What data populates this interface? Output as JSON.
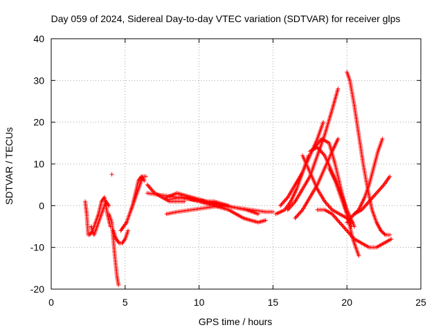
{
  "chart_data": {
    "type": "scatter",
    "title": "Day 059 of 2024, Sidereal Day-to-day VTEC variation (SDTVAR) for receiver glps",
    "xlabel": "GPS time / hours",
    "ylabel": "SDTVAR / TECUs",
    "xlim": [
      0,
      25
    ],
    "ylim": [
      -20,
      40
    ],
    "xticks": [
      0,
      5,
      10,
      15,
      20,
      25
    ],
    "yticks": [
      -20,
      -10,
      0,
      10,
      20,
      30,
      40
    ],
    "grid": true,
    "marker": "+",
    "color": "#ff0000",
    "tracks": [
      {
        "name": "t1",
        "x": [
          2.3,
          2.4,
          2.5
        ],
        "y": [
          1,
          -2,
          -7
        ]
      },
      {
        "name": "t2",
        "x": [
          2.6,
          2.8,
          3.0,
          3.2,
          3.4,
          3.6,
          3.8,
          4.0
        ],
        "y": [
          -7,
          -6,
          -4,
          -2,
          1,
          2,
          -2,
          -5
        ]
      },
      {
        "name": "t3",
        "x": [
          2.7,
          2.9,
          3.1,
          3.3,
          3.5,
          3.7,
          3.9
        ],
        "y": [
          -5,
          -7,
          -5,
          -3,
          -1,
          1,
          0
        ]
      },
      {
        "name": "t4",
        "x": [
          3.9,
          4.1,
          4.3,
          4.45,
          4.55
        ],
        "y": [
          -2,
          -4,
          -12,
          -17,
          -19
        ]
      },
      {
        "name": "t5",
        "x": [
          4.2,
          4.4,
          4.6,
          4.8,
          5.0,
          5.2
        ],
        "y": [
          -6,
          -8,
          -9,
          -9,
          -8,
          -6
        ]
      },
      {
        "name": "t6",
        "x": [
          4.7,
          4.9,
          5.1,
          5.3,
          5.5,
          5.7,
          5.9,
          6.1,
          6.3
        ],
        "y": [
          -6,
          -5,
          -4,
          -2,
          0,
          3,
          6,
          7,
          6
        ]
      },
      {
        "name": "t7",
        "x": [
          5.4,
          5.6,
          5.8,
          6.0,
          6.2,
          6.4
        ],
        "y": [
          -1,
          1,
          3,
          5,
          7,
          7
        ]
      },
      {
        "name": "t8",
        "x": [
          6.5,
          7.0,
          7.5,
          8.0,
          8.5,
          9.0
        ],
        "y": [
          5,
          3,
          2,
          1,
          1,
          1
        ]
      },
      {
        "name": "t9",
        "x": [
          7.8,
          8.5,
          9.0,
          9.5,
          10.0,
          10.5,
          11.0,
          11.5,
          12.0
        ],
        "y": [
          2,
          3,
          2.5,
          2,
          1.5,
          1,
          1,
          0.5,
          0
        ]
      },
      {
        "name": "t10",
        "x": [
          7.8,
          8.5,
          9.5,
          10.5,
          11.5,
          12.5,
          13.5,
          14.5,
          15.0
        ],
        "y": [
          -2,
          -1.5,
          -1,
          -0.5,
          0,
          -0.5,
          -1,
          -1.5,
          -1.5
        ]
      },
      {
        "name": "t11",
        "x": [
          8.0,
          8.8,
          9.5,
          10.2,
          11.0,
          11.8,
          12.5,
          13.2,
          14.0
        ],
        "y": [
          1.5,
          2,
          1.5,
          1,
          0.5,
          0,
          -0.5,
          -1,
          -2
        ]
      },
      {
        "name": "t12",
        "x": [
          9.0,
          10.0,
          11.0,
          12.0,
          12.5,
          13.0,
          13.5,
          14.0,
          14.5
        ],
        "y": [
          2,
          1,
          0,
          -1,
          -2,
          -3,
          -3.5,
          -4,
          -3.5
        ]
      },
      {
        "name": "t13",
        "x": [
          6.5,
          7.5,
          8.5,
          9.5,
          10.5,
          11.5
        ],
        "y": [
          3,
          2.5,
          2,
          1.5,
          1,
          0
        ]
      },
      {
        "name": "t14",
        "x": [
          15.2,
          15.8,
          16.2,
          16.6,
          17.0,
          17.4
        ],
        "y": [
          -2,
          -1,
          1,
          4,
          8,
          12
        ]
      },
      {
        "name": "t15",
        "x": [
          15.5,
          16.0,
          16.5,
          17.0,
          17.5,
          18.0,
          18.4
        ],
        "y": [
          0,
          2,
          5,
          8,
          12,
          16,
          20
        ]
      },
      {
        "name": "t16",
        "x": [
          16.0,
          16.5,
          17.0,
          17.5,
          18.0,
          18.5,
          19.0,
          19.4
        ],
        "y": [
          -1,
          1,
          4,
          7,
          12,
          17,
          23,
          28
        ]
      },
      {
        "name": "t17",
        "x": [
          16.5,
          17.0,
          17.5,
          18.0,
          18.5,
          19.0,
          19.4
        ],
        "y": [
          -3,
          -1,
          2,
          5,
          9,
          13,
          16
        ]
      },
      {
        "name": "t18",
        "x": [
          17.0,
          17.5,
          18.0,
          18.5,
          19.0,
          19.5,
          20.0,
          20.4
        ],
        "y": [
          12,
          8,
          4,
          1,
          -1,
          -2,
          -3,
          -4
        ]
      },
      {
        "name": "t19",
        "x": [
          17.5,
          18.0,
          18.5,
          19.0,
          19.5,
          20.0,
          20.5
        ],
        "y": [
          13,
          14,
          12,
          8,
          4,
          -1,
          -5
        ]
      },
      {
        "name": "t20",
        "x": [
          17.8,
          18.3,
          18.8,
          19.2,
          19.6,
          20.0,
          20.4,
          20.8
        ],
        "y": [
          14,
          16,
          15,
          10,
          4,
          -2,
          -8,
          -12
        ]
      },
      {
        "name": "t21",
        "x": [
          18.0,
          18.5,
          19.0,
          19.5,
          20.0,
          20.5,
          21.0,
          21.5,
          22.0,
          22.5,
          23.0
        ],
        "y": [
          -1,
          -1,
          -2,
          -4,
          -6,
          -8,
          -9,
          -10,
          -10,
          -9,
          -8
        ]
      },
      {
        "name": "t22",
        "x": [
          20.0,
          20.2,
          20.5,
          20.8,
          21.1,
          21.4,
          21.7,
          22.0,
          22.3,
          22.6,
          22.9
        ],
        "y": [
          32,
          30,
          24,
          17,
          10,
          4,
          -1,
          -4,
          -6,
          -7,
          -7
        ]
      },
      {
        "name": "t23",
        "x": [
          20.5,
          20.8,
          21.2,
          21.5,
          21.8,
          22.1,
          22.4
        ],
        "y": [
          -2,
          -1,
          2,
          5,
          9,
          13,
          16
        ]
      },
      {
        "name": "t24",
        "x": [
          20.0,
          20.5,
          21.0,
          21.5,
          22.0,
          22.5,
          22.9
        ],
        "y": [
          -4,
          -2,
          -1,
          1,
          3,
          5,
          7
        ]
      },
      {
        "name": "t25",
        "x": [
          18.8,
          19.2,
          19.6,
          20.0,
          20.3
        ],
        "y": [
          9,
          6,
          2,
          -2,
          -5
        ]
      }
    ],
    "isolated": [
      {
        "x": 4.1,
        "y": 7.5
      }
    ]
  }
}
